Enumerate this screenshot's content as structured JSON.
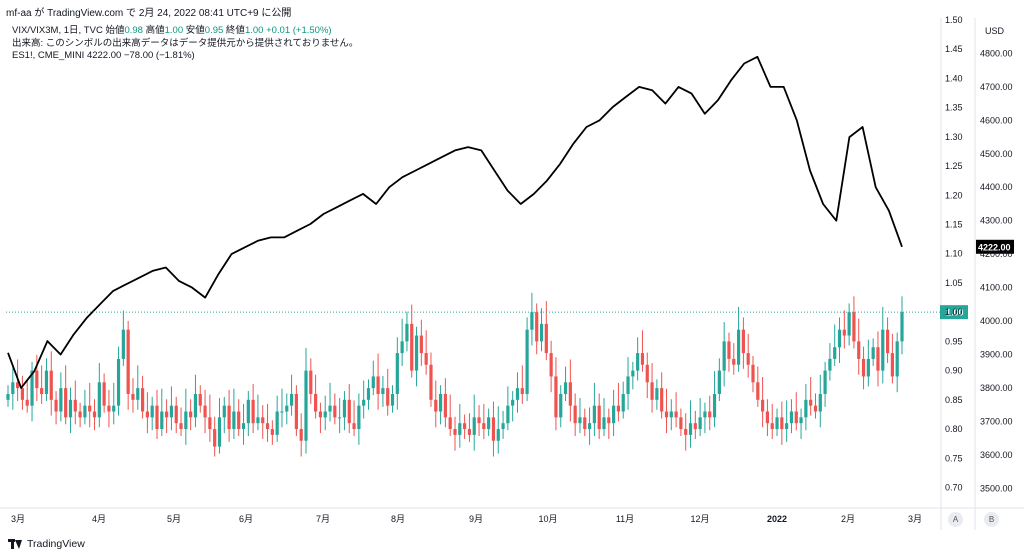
{
  "header": {
    "user": "mf-aa",
    "published_text": "mf-aa が TradingView.com で 2月 24, 2022 08:41 UTC+9 に公開"
  },
  "legend": {
    "symbol_line": "VIX/VIX3M, 1日, TVC",
    "open_label": "始値",
    "open_value": "0.98",
    "high_label": "高値",
    "high_value": "1.00",
    "low_label": "安値",
    "low_value": "0.95",
    "close_label": "終値",
    "close_value": "1.00",
    "change": "+0.01 (+1.50%)",
    "volume_note": "出来高: このシンボルの出来高データはデータ提供元から提供されておりません。",
    "es_line": "ES1!, CME_MINI  4222.00  −78.00 (−1.81%)"
  },
  "axis": {
    "currency": "USD",
    "scale_buttons": [
      "A",
      "B"
    ]
  },
  "footer": {
    "brand": "TradingView"
  },
  "colors": {
    "up": "#26a69a",
    "down": "#ef5350",
    "es_line": "#000000",
    "price_tag_bg": "#26a69a"
  },
  "chart_data": {
    "type": "candlestick+line",
    "x_labels": [
      "3月",
      "4月",
      "5月",
      "6月",
      "7月",
      "8月",
      "9月",
      "10月",
      "11月",
      "12月",
      "2022",
      "2月",
      "3月"
    ],
    "ratio_axis": {
      "name": "VIX/VIX3M",
      "ylim": [
        0.67,
        1.5
      ],
      "ticks": [
        "1.50",
        "1.45",
        "1.40",
        "1.35",
        "1.30",
        "1.25",
        "1.20",
        "1.15",
        "1.10",
        "1.05",
        "1.00",
        "0.95",
        "0.90",
        "0.85",
        "0.80",
        "0.75",
        "0.70"
      ],
      "last_value": "1.00"
    },
    "price_axis": {
      "name": "ES1!",
      "ylim": [
        3450,
        4900
      ],
      "ticks": [
        "4800.00",
        "4700.00",
        "4600.00",
        "4500.00",
        "4400.00",
        "4300.00",
        "4200.00",
        "4100.00",
        "4000.00",
        "3900.00",
        "3800.00",
        "3700.00",
        "3600.00",
        "3500.00"
      ],
      "last_value": "4222.00"
    },
    "es_close_weekly": [
      3905,
      3800,
      3850,
      3940,
      3900,
      3960,
      4010,
      4050,
      4090,
      4110,
      4130,
      4150,
      4160,
      4120,
      4100,
      4070,
      4140,
      4200,
      4220,
      4240,
      4250,
      4250,
      4270,
      4290,
      4320,
      4340,
      4360,
      4380,
      4350,
      4400,
      4430,
      4450,
      4470,
      4490,
      4510,
      4520,
      4510,
      4450,
      4390,
      4350,
      4380,
      4420,
      4470,
      4530,
      4580,
      4600,
      4640,
      4670,
      4700,
      4690,
      4650,
      4700,
      4680,
      4620,
      4660,
      4720,
      4770,
      4790,
      4700,
      4700,
      4600,
      4450,
      4350,
      4300,
      4550,
      4580,
      4400,
      4330,
      4222
    ],
    "vix_ratio": [
      0.86,
      0.88,
      0.87,
      0.85,
      0.84,
      0.9,
      0.87,
      0.86,
      0.9,
      0.85,
      0.83,
      0.87,
      0.82,
      0.85,
      0.83,
      0.82,
      0.84,
      0.83,
      0.82,
      0.88,
      0.84,
      0.83,
      0.84,
      0.92,
      0.97,
      0.86,
      0.85,
      0.87,
      0.83,
      0.82,
      0.84,
      0.8,
      0.83,
      0.82,
      0.84,
      0.81,
      0.8,
      0.83,
      0.82,
      0.86,
      0.84,
      0.82,
      0.8,
      0.77,
      0.82,
      0.84,
      0.8,
      0.83,
      0.8,
      0.81,
      0.85,
      0.81,
      0.82,
      0.81,
      0.8,
      0.79,
      0.83,
      0.83,
      0.84,
      0.86,
      0.8,
      0.78,
      0.9,
      0.86,
      0.83,
      0.82,
      0.83,
      0.84,
      0.82,
      0.82,
      0.85,
      0.81,
      0.8,
      0.84,
      0.85,
      0.87,
      0.89,
      0.86,
      0.87,
      0.84,
      0.86,
      0.93,
      0.95,
      0.98,
      0.9,
      0.96,
      0.93,
      0.91,
      0.85,
      0.83,
      0.86,
      0.82,
      0.8,
      0.79,
      0.81,
      0.8,
      0.79,
      0.82,
      0.81,
      0.8,
      0.82,
      0.78,
      0.8,
      0.81,
      0.84,
      0.85,
      0.87,
      0.86,
      0.97,
      1.0,
      0.95,
      0.98,
      0.93,
      0.89,
      0.82,
      0.86,
      0.88,
      0.84,
      0.81,
      0.82,
      0.8,
      0.81,
      0.84,
      0.8,
      0.82,
      0.81,
      0.84,
      0.83,
      0.86,
      0.89,
      0.9,
      0.93,
      0.91,
      0.88,
      0.85,
      0.87,
      0.83,
      0.82,
      0.83,
      0.82,
      0.8,
      0.79,
      0.81,
      0.8,
      0.82,
      0.83,
      0.82,
      0.86,
      0.9,
      0.95,
      0.92,
      0.91,
      0.97,
      0.93,
      0.91,
      0.88,
      0.85,
      0.83,
      0.81,
      0.8,
      0.82,
      0.8,
      0.81,
      0.83,
      0.81,
      0.82,
      0.85,
      0.84,
      0.83,
      0.86,
      0.9,
      0.92,
      0.94,
      0.97,
      0.96,
      1.0,
      0.95,
      0.92,
      0.89,
      0.92,
      0.94,
      0.9,
      0.97,
      0.93,
      0.89,
      0.95,
      1.0
    ]
  }
}
